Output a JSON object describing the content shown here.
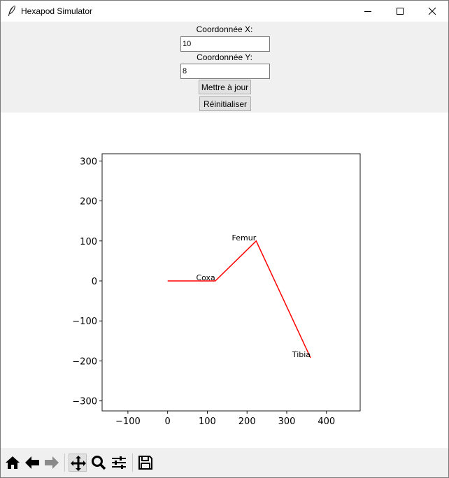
{
  "window": {
    "title": "Hexapod Simulator"
  },
  "controls": {
    "x_label": "Coordonnée X:",
    "x_value": "10",
    "y_label": "Coordonnée Y:",
    "y_value": "8",
    "update_button": "Mettre à jour",
    "reset_button": "Réinitialiser"
  },
  "toolbar": {
    "icons": [
      "home-icon",
      "back-arrow-icon",
      "forward-arrow-icon",
      "pan-icon",
      "zoom-icon",
      "configure-subplots-icon",
      "save-icon"
    ]
  },
  "chart_data": {
    "type": "line",
    "xlim": [
      -165,
      485
    ],
    "ylim": [
      -325,
      318
    ],
    "x_ticks": [
      -100,
      0,
      100,
      200,
      300,
      400
    ],
    "y_ticks": [
      300,
      200,
      100,
      0,
      -100,
      -200,
      -300
    ],
    "x_tick_labels": [
      "−100",
      "0",
      "100",
      "200",
      "300",
      "400"
    ],
    "y_tick_labels": [
      "300",
      "200",
      "100",
      "0",
      "−100",
      "−200",
      "−300"
    ],
    "grid": false,
    "series": [
      {
        "color": "#ff0000",
        "points": [
          [
            0,
            0
          ],
          [
            120,
            0
          ],
          [
            223,
            100
          ],
          [
            360,
            -192
          ]
        ]
      }
    ],
    "annotations": [
      {
        "text": "Coxa",
        "x": 120,
        "y": 0
      },
      {
        "text": "Femur",
        "x": 223,
        "y": 100
      },
      {
        "text": "Tibia",
        "x": 360,
        "y": -192
      }
    ]
  }
}
